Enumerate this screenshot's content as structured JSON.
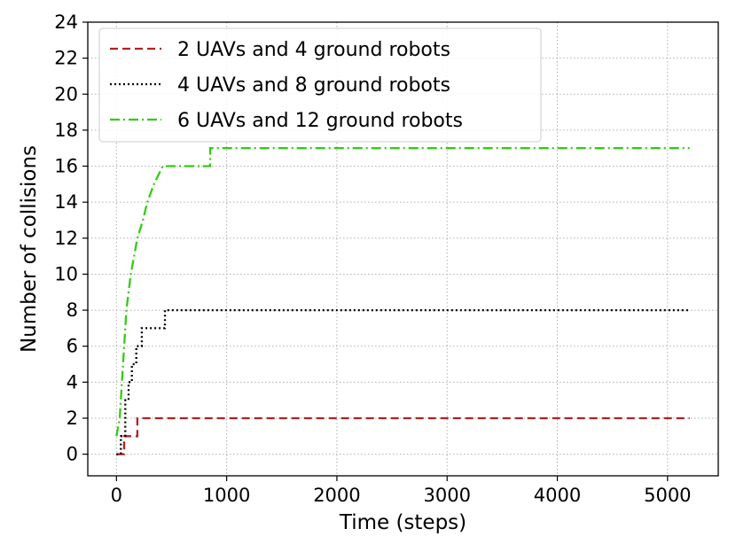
{
  "chart_data": {
    "type": "line",
    "title": "",
    "xlabel": "Time (steps)",
    "ylabel": "Number of collisions",
    "xlim": [
      -260,
      5460
    ],
    "ylim": [
      -1.2,
      24
    ],
    "xticks": [
      0,
      1000,
      2000,
      3000,
      4000,
      5000
    ],
    "yticks": [
      0,
      2,
      4,
      6,
      8,
      10,
      12,
      14,
      16,
      18,
      20,
      22,
      24
    ],
    "grid": true,
    "legend_position": "upper-left",
    "series": [
      {
        "name": "2 UAVs and 4 ground robots",
        "color": "#b22222",
        "dash": "dashed",
        "x": [
          0,
          70,
          70,
          190,
          190,
          5200
        ],
        "y": [
          0,
          0,
          1,
          1,
          2,
          2
        ]
      },
      {
        "name": "4 UAVs and 8 ground robots",
        "color": "#000000",
        "dash": "dotted",
        "x": [
          0,
          40,
          40,
          80,
          80,
          110,
          110,
          140,
          140,
          180,
          180,
          230,
          230,
          440,
          440,
          5200
        ],
        "y": [
          0,
          0,
          1,
          1,
          3,
          3,
          4,
          4,
          5,
          5,
          6,
          6,
          7,
          7,
          8,
          8
        ],
        "stepped": false
      },
      {
        "name": "6 UAVs and 12 ground robots",
        "color": "#33cc11",
        "dash": "dashdot",
        "x": [
          0,
          30,
          50,
          70,
          90,
          110,
          130,
          160,
          190,
          240,
          240,
          280,
          280,
          340,
          340,
          420,
          420,
          850,
          850,
          5200
        ],
        "y": [
          1,
          2,
          4,
          6,
          8,
          9,
          10,
          11,
          12,
          13,
          13,
          14,
          14,
          15,
          15,
          16,
          16,
          16,
          17,
          17
        ]
      }
    ]
  }
}
